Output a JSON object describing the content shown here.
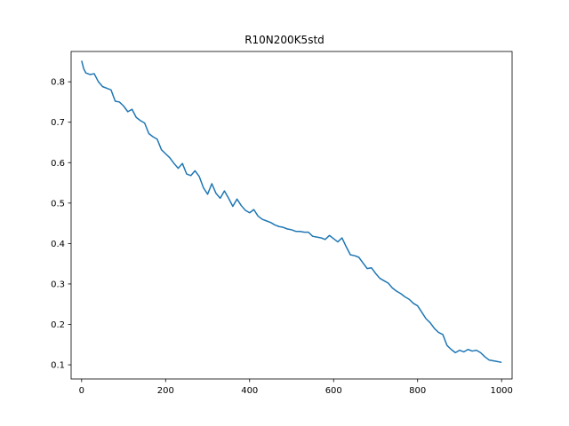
{
  "chart_data": {
    "type": "line",
    "title": "R10N200K5std",
    "xlabel": "",
    "ylabel": "",
    "xlim": [
      -25,
      1025
    ],
    "ylim": [
      0.065,
      0.875
    ],
    "xticks": [
      0,
      200,
      400,
      600,
      800,
      1000
    ],
    "xtick_labels": [
      "0",
      "200",
      "400",
      "600",
      "800",
      "1000"
    ],
    "yticks": [
      0.1,
      0.2,
      0.3,
      0.4,
      0.5,
      0.6,
      0.7,
      0.8
    ],
    "ytick_labels": [
      "0.1",
      "0.2",
      "0.3",
      "0.4",
      "0.5",
      "0.6",
      "0.7",
      "0.8"
    ],
    "grid": false,
    "color": "#1f77b4",
    "series": [
      {
        "name": "",
        "x": [
          0,
          5,
          10,
          20,
          30,
          40,
          50,
          60,
          70,
          80,
          90,
          100,
          110,
          120,
          130,
          140,
          150,
          160,
          170,
          180,
          190,
          200,
          210,
          220,
          230,
          240,
          250,
          260,
          270,
          280,
          290,
          300,
          310,
          320,
          330,
          340,
          350,
          360,
          370,
          380,
          390,
          400,
          410,
          420,
          430,
          440,
          450,
          460,
          470,
          480,
          490,
          500,
          510,
          520,
          530,
          540,
          550,
          560,
          570,
          580,
          590,
          600,
          610,
          620,
          630,
          640,
          650,
          660,
          670,
          680,
          690,
          700,
          710,
          720,
          730,
          740,
          750,
          760,
          770,
          780,
          790,
          800,
          810,
          820,
          830,
          840,
          850,
          860,
          870,
          880,
          890,
          900,
          910,
          920,
          930,
          940,
          950,
          960,
          970,
          980,
          990,
          1000
        ],
        "y": [
          0.852,
          0.832,
          0.822,
          0.818,
          0.82,
          0.8,
          0.788,
          0.784,
          0.78,
          0.752,
          0.75,
          0.74,
          0.726,
          0.732,
          0.712,
          0.704,
          0.698,
          0.672,
          0.664,
          0.658,
          0.632,
          0.622,
          0.612,
          0.598,
          0.586,
          0.598,
          0.572,
          0.568,
          0.58,
          0.566,
          0.538,
          0.522,
          0.548,
          0.524,
          0.512,
          0.53,
          0.512,
          0.492,
          0.51,
          0.494,
          0.482,
          0.476,
          0.484,
          0.468,
          0.46,
          0.456,
          0.452,
          0.446,
          0.442,
          0.44,
          0.436,
          0.434,
          0.43,
          0.43,
          0.428,
          0.428,
          0.418,
          0.416,
          0.414,
          0.41,
          0.42,
          0.412,
          0.404,
          0.414,
          0.392,
          0.372,
          0.37,
          0.366,
          0.352,
          0.338,
          0.34,
          0.326,
          0.314,
          0.308,
          0.302,
          0.29,
          0.282,
          0.276,
          0.268,
          0.262,
          0.252,
          0.246,
          0.23,
          0.214,
          0.204,
          0.19,
          0.18,
          0.175,
          0.148,
          0.138,
          0.13,
          0.136,
          0.132,
          0.138,
          0.134,
          0.136,
          0.13,
          0.12,
          0.112,
          0.11,
          0.108,
          0.106
        ]
      }
    ]
  }
}
